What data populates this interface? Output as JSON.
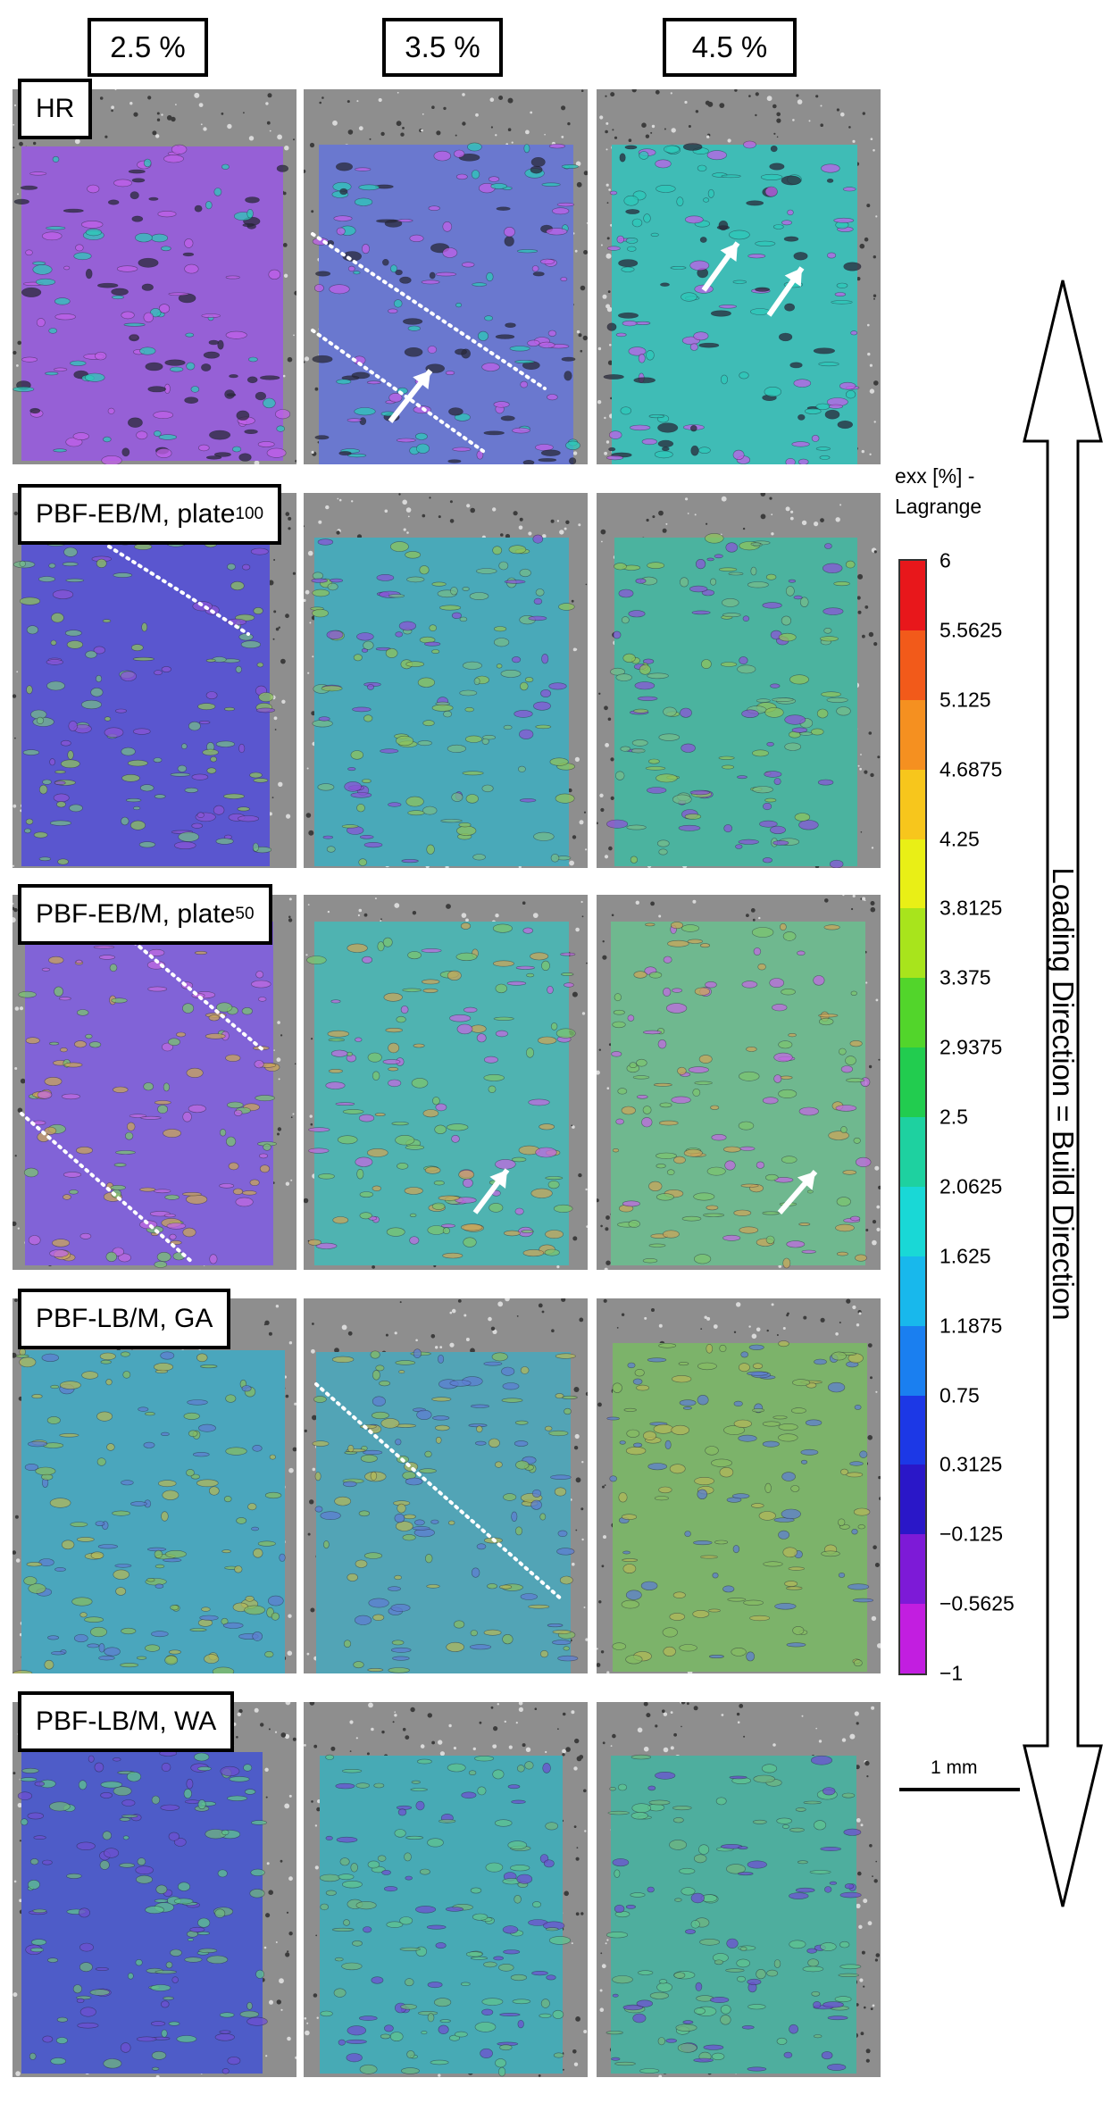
{
  "strains": [
    "2.5 %",
    "3.5 %",
    "4.5 %"
  ],
  "rows": [
    {
      "name": "HR",
      "sub": "",
      "fields": [
        "#9660d6",
        "#6a78cf",
        "#3fbcb6"
      ],
      "specks": [
        "#c060e8",
        "#2dc8b8",
        "#2a2a3a"
      ]
    },
    {
      "name": "PBF-EB/M, plate",
      "sub": "100",
      "fields": [
        "#5a56cf",
        "#49a9b9",
        "#4bb39f"
      ],
      "specks": [
        "#8a54d6",
        "#74bb8a",
        "#8ec35c"
      ]
    },
    {
      "name": "PBF-EB/M, plate",
      "sub": "50",
      "fields": [
        "#8163d7",
        "#4fb3b1",
        "#6fb88f"
      ],
      "specks": [
        "#c06ae0",
        "#7bc46f",
        "#c9a65a"
      ]
    },
    {
      "name": "PBF-LB/M, GA",
      "sub": "",
      "fields": [
        "#4aa6bd",
        "#52a4b6",
        "#7cb36a"
      ],
      "specks": [
        "#5e7ed0",
        "#85bb63",
        "#b2b75a"
      ]
    },
    {
      "name": "PBF-LB/M, WA",
      "sub": "",
      "fields": [
        "#4e5cc8",
        "#47aab5",
        "#4eae9e"
      ],
      "specks": [
        "#6e4fd0",
        "#5fc38f",
        "#6fb47f"
      ]
    }
  ],
  "legend": {
    "title_line1": "exx [%] -",
    "title_line2": "Lagrange",
    "ticks": [
      "6",
      "5.5625",
      "5.125",
      "4.6875",
      "4.25",
      "3.8125",
      "3.375",
      "2.9375",
      "2.5",
      "2.0625",
      "1.625",
      "1.1875",
      "0.75",
      "0.3125",
      "−0.125",
      "−0.5625",
      "−1"
    ],
    "colors": [
      "#e8171b",
      "#f25a1a",
      "#f59020",
      "#f7c61c",
      "#e9ef16",
      "#a8e41c",
      "#52d52b",
      "#22cc4f",
      "#1ed1a0",
      "#19d8d6",
      "#18b8ec",
      "#1a7ff0",
      "#1c38e6",
      "#2a17c8",
      "#7d1ad7",
      "#c21ee0",
      "#ec2ff0"
    ]
  },
  "scale_bar_label": "1 mm",
  "loading_direction_label": "Loading Direction = Build Direction"
}
